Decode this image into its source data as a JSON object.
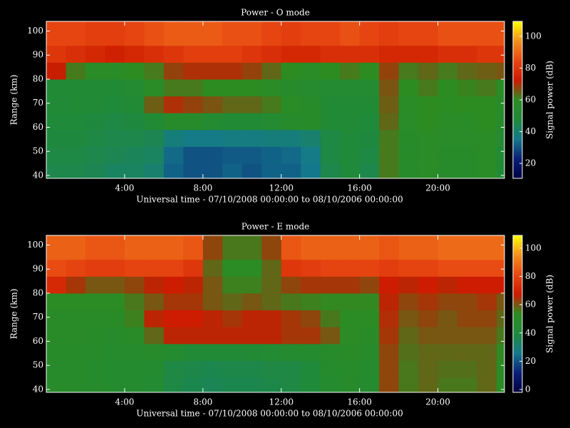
{
  "chart_data": [
    {
      "type": "heatmap",
      "title": "Power - O mode",
      "ylabel": "Range (km)",
      "xlabel": "Universal time - 07/10/2008 00:00:00 to 08/10/2006 00:00:00",
      "x_bins": [
        0,
        1,
        2,
        3,
        4,
        5,
        6,
        7,
        8,
        9,
        10,
        11,
        12,
        13,
        14,
        15,
        16,
        17,
        18,
        19,
        20,
        21,
        22,
        23,
        23.4
      ],
      "y_bins": [
        38.8,
        45,
        52,
        59,
        66,
        73,
        80,
        87,
        94,
        104
      ],
      "values": [
        [
          45,
          45,
          44,
          42,
          42,
          40,
          32,
          30,
          30,
          32,
          30,
          32,
          32,
          35,
          45,
          48,
          45,
          62,
          55,
          58,
          55,
          55,
          58,
          50
        ],
        [
          46,
          46,
          45,
          44,
          43,
          42,
          33,
          30,
          30,
          31,
          31,
          32,
          33,
          36,
          46,
          48,
          46,
          62,
          56,
          58,
          56,
          56,
          58,
          50
        ],
        [
          47,
          47,
          46,
          45,
          45,
          44,
          38,
          36,
          36,
          37,
          37,
          38,
          38,
          40,
          46,
          48,
          47,
          62,
          56,
          58,
          57,
          57,
          58,
          52
        ],
        [
          48,
          48,
          47,
          46,
          47,
          50,
          55,
          55,
          52,
          50,
          50,
          52,
          55,
          56,
          50,
          49,
          48,
          64,
          57,
          60,
          58,
          58,
          60,
          55
        ],
        [
          49,
          50,
          49,
          48,
          50,
          65,
          70,
          68,
          66,
          64,
          64,
          62,
          58,
          56,
          50,
          50,
          50,
          65,
          58,
          60,
          59,
          60,
          60,
          56
        ],
        [
          50,
          50,
          50,
          50,
          52,
          58,
          62,
          62,
          60,
          60,
          60,
          58,
          55,
          54,
          52,
          52,
          52,
          66,
          60,
          62,
          60,
          61,
          62,
          57
        ],
        [
          72,
          62,
          58,
          58,
          60,
          62,
          68,
          70,
          70,
          70,
          68,
          64,
          60,
          58,
          60,
          62,
          60,
          68,
          62,
          64,
          62,
          64,
          65,
          66
        ],
        [
          80,
          78,
          76,
          74,
          76,
          78,
          80,
          82,
          82,
          82,
          80,
          78,
          76,
          76,
          78,
          78,
          78,
          76,
          76,
          76,
          78,
          78,
          80,
          80
        ],
        [
          84,
          84,
          82,
          82,
          84,
          86,
          88,
          88,
          88,
          86,
          86,
          84,
          82,
          84,
          84,
          86,
          84,
          82,
          84,
          84,
          86,
          86,
          86,
          86
        ]
      ],
      "xlim": [
        0,
        23.4
      ],
      "ylim": [
        38.8,
        104
      ],
      "xticks": [
        {
          "value": 4,
          "label": "4:00"
        },
        {
          "value": 8,
          "label": "8:00"
        },
        {
          "value": 12,
          "label": "12:00"
        },
        {
          "value": 16,
          "label": "16:00"
        },
        {
          "value": 20,
          "label": "20:00"
        }
      ],
      "yticks": [
        40,
        50,
        60,
        70,
        80,
        90,
        100
      ],
      "colorbar": {
        "label": "Signal power (dB)",
        "clim": [
          10.6,
          109.4
        ],
        "ticks": [
          20,
          40,
          60,
          80,
          100
        ]
      },
      "colormap": [
        "#000040",
        "#0a1f78",
        "#147a8c",
        "#1f8a3a",
        "#2c8c22",
        "#cc1a00",
        "#e84812",
        "#f2901e",
        "#ffff00"
      ]
    },
    {
      "type": "heatmap",
      "title": "Power - E mode",
      "ylabel": "Range (km)",
      "xlabel": "Universal time - 07/10/2008 00:00:00 to 08/10/2006 00:00:00",
      "x_bins": [
        0,
        1,
        2,
        3,
        4,
        5,
        6,
        7,
        8,
        9,
        10,
        11,
        12,
        13,
        14,
        15,
        16,
        17,
        18,
        19,
        20,
        21,
        22,
        23,
        23.4
      ],
      "y_bins": [
        38.8,
        45,
        52,
        59,
        66,
        73,
        80,
        87,
        94,
        104
      ],
      "values": [
        [
          48,
          48,
          47,
          46,
          46,
          44,
          38,
          36,
          35,
          36,
          36,
          37,
          38,
          40,
          46,
          48,
          46,
          62,
          56,
          58,
          56,
          56,
          58,
          52
        ],
        [
          48,
          48,
          47,
          46,
          46,
          45,
          38,
          37,
          36,
          37,
          37,
          38,
          38,
          40,
          47,
          48,
          47,
          62,
          56,
          58,
          57,
          57,
          58,
          52
        ],
        [
          49,
          49,
          48,
          47,
          47,
          48,
          45,
          42,
          42,
          42,
          43,
          44,
          45,
          46,
          48,
          50,
          48,
          62,
          57,
          58,
          58,
          58,
          58,
          54
        ],
        [
          50,
          50,
          49,
          48,
          50,
          58,
          66,
          66,
          66,
          66,
          66,
          66,
          64,
          64,
          60,
          52,
          50,
          64,
          58,
          60,
          60,
          60,
          60,
          56
        ],
        [
          50,
          50,
          50,
          50,
          55,
          66,
          68,
          68,
          66,
          64,
          66,
          66,
          64,
          62,
          56,
          52,
          52,
          65,
          60,
          62,
          60,
          62,
          62,
          58
        ],
        [
          52,
          52,
          52,
          52,
          56,
          60,
          64,
          64,
          60,
          58,
          60,
          58,
          56,
          55,
          54,
          54,
          54,
          66,
          62,
          64,
          62,
          62,
          64,
          60
        ],
        [
          72,
          64,
          60,
          60,
          62,
          66,
          68,
          66,
          60,
          55,
          55,
          58,
          62,
          64,
          64,
          64,
          62,
          68,
          66,
          68,
          66,
          68,
          68,
          68
        ],
        [
          82,
          80,
          78,
          78,
          80,
          80,
          80,
          76,
          58,
          52,
          52,
          58,
          76,
          78,
          80,
          80,
          80,
          78,
          80,
          80,
          82,
          82,
          82,
          82
        ],
        [
          86,
          86,
          84,
          84,
          86,
          86,
          86,
          84,
          62,
          56,
          56,
          62,
          84,
          86,
          86,
          86,
          86,
          84,
          86,
          86,
          88,
          88,
          88,
          88
        ]
      ],
      "xlim": [
        0,
        23.4
      ],
      "ylim": [
        38.8,
        104
      ],
      "xticks": [
        {
          "value": 4,
          "label": "4:00"
        },
        {
          "value": 8,
          "label": "8:00"
        },
        {
          "value": 12,
          "label": "12:00"
        },
        {
          "value": 16,
          "label": "16:00"
        },
        {
          "value": 20,
          "label": "20:00"
        }
      ],
      "yticks": [
        40,
        50,
        60,
        70,
        80,
        90,
        100
      ],
      "colorbar": {
        "label": "Signal power (dB)",
        "clim": [
          -2,
          109
        ],
        "ticks": [
          0,
          20,
          40,
          60,
          80,
          100
        ]
      },
      "colormap": [
        "#000040",
        "#0a1f78",
        "#147a8c",
        "#1f8a3a",
        "#2c8c22",
        "#cc1a00",
        "#e84812",
        "#f2901e",
        "#ffff00"
      ]
    }
  ]
}
